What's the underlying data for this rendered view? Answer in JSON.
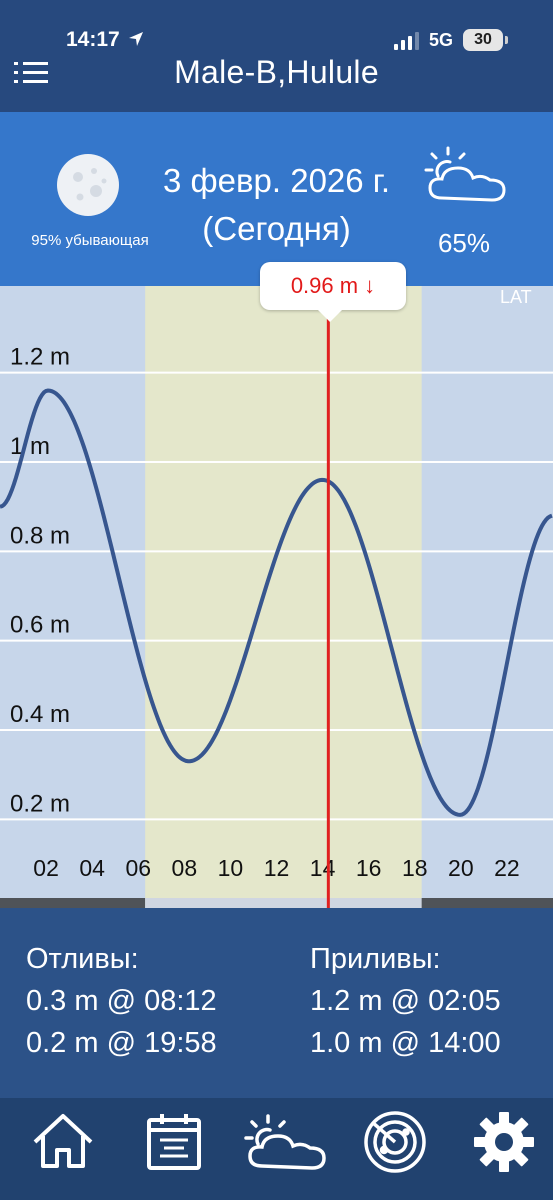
{
  "status": {
    "time": "14:17",
    "network": "5G",
    "battery": "30"
  },
  "header": {
    "title": "Male-B,Hulule"
  },
  "day": {
    "date": "3 февр. 2026 г.",
    "relative": "(Сегодня)",
    "moon_phase": "95% убывающая",
    "cloud_cover": "65%"
  },
  "chart_data": {
    "type": "line",
    "x_label": "",
    "y_label": "",
    "x_unit": "hours",
    "y_unit": "m",
    "xlim": [
      0,
      24
    ],
    "ylim": [
      0.1,
      1.3
    ],
    "x_ticks": [
      "02",
      "04",
      "06",
      "08",
      "10",
      "12",
      "14",
      "16",
      "18",
      "20",
      "22"
    ],
    "y_ticks": [
      "0.2 m",
      "0.4 m",
      "0.6 m",
      "0.8 m",
      "1 m",
      "1.2 m"
    ],
    "y_tick_values": [
      0.2,
      0.4,
      0.6,
      0.8,
      1.0,
      1.2
    ],
    "daylight": [
      6.3,
      18.3
    ],
    "series": [
      {
        "name": "",
        "extrema": [
          [
            0,
            0.9
          ],
          [
            2.08,
            1.16
          ],
          [
            8.2,
            0.33
          ],
          [
            14.0,
            0.96
          ],
          [
            19.97,
            0.21
          ],
          [
            24,
            0.88
          ]
        ]
      }
    ],
    "current": {
      "x": 14.25,
      "label": "0.96 m ↓"
    },
    "datum": "LAT",
    "colors": {
      "line": "#37568f",
      "marker": "#e02020",
      "daylight": "#e4e7cb",
      "night": "#c7d6ea",
      "grid": "#ffffff"
    }
  },
  "tides": {
    "lows_title": "Отливы:",
    "lows": [
      "0.3 m @ 08:12",
      "0.2 m @ 19:58"
    ],
    "highs_title": "Приливы:",
    "highs": [
      "1.2 m @ 02:05",
      "1.0 m @ 14:00"
    ]
  },
  "nav": {
    "items": [
      {
        "icon": "home-icon"
      },
      {
        "icon": "calendar-icon"
      },
      {
        "icon": "weather-icon"
      },
      {
        "icon": "radar-icon"
      },
      {
        "icon": "settings-icon"
      }
    ]
  }
}
